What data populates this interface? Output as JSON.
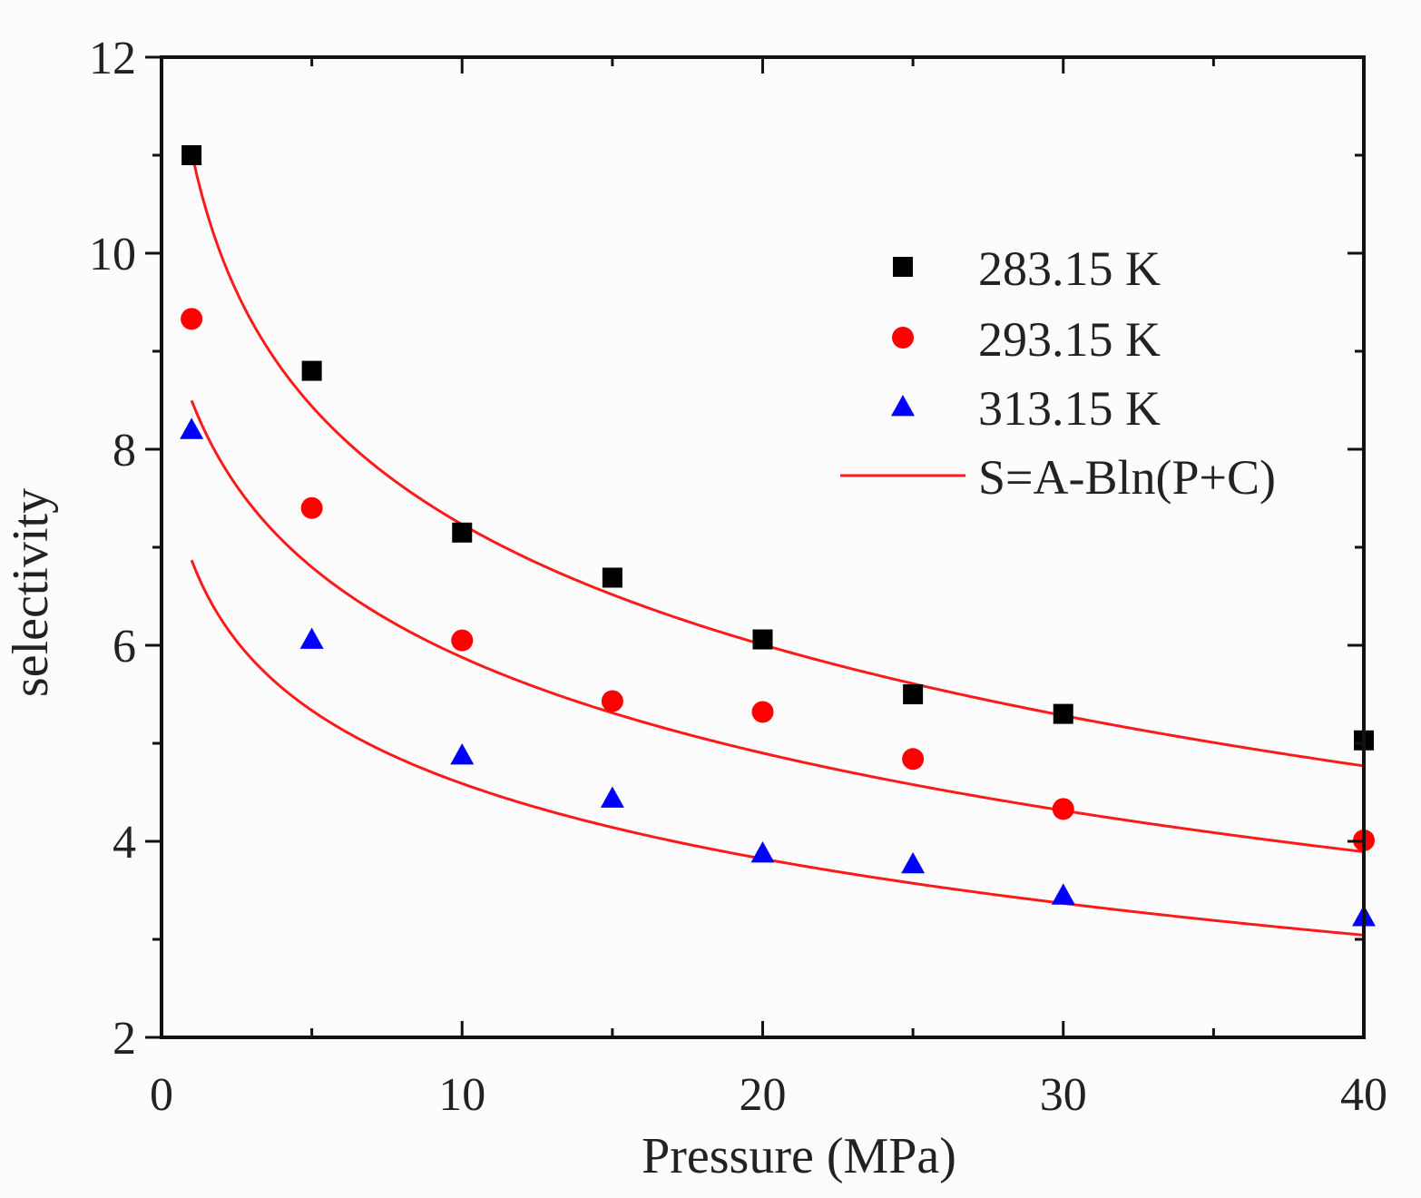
{
  "chart_data": {
    "type": "scatter",
    "title": "",
    "xlabel": "Pressure (MPa)",
    "ylabel": "selectivity",
    "xlim": [
      0,
      40
    ],
    "ylim": [
      2,
      12
    ],
    "xticks": [
      0,
      10,
      20,
      30,
      40
    ],
    "yticks": [
      2,
      4,
      6,
      8,
      10,
      12
    ],
    "x_minor_step": 5,
    "y_minor_step": 1,
    "grid": false,
    "legend_position": "top-right",
    "fit_label": "S=A-Bln(P+C)",
    "fit_color": "#ff1a1a",
    "series": [
      {
        "name": "283.15 K",
        "marker": "square",
        "color": "#000000",
        "x": [
          1,
          5,
          10,
          15,
          20,
          25,
          30,
          40
        ],
        "y": [
          11.0,
          8.8,
          7.15,
          6.69,
          6.06,
          5.5,
          5.3,
          5.03
        ],
        "fit": {
          "A": 11.42,
          "B": 1.8,
          "C": 0.24
        }
      },
      {
        "name": "293.15 K",
        "marker": "circle",
        "color": "#ff0000",
        "x": [
          1,
          5,
          10,
          15,
          20,
          25,
          30,
          40
        ],
        "y": [
          9.33,
          7.4,
          6.05,
          5.43,
          5.32,
          4.84,
          4.33,
          4.01
        ],
        "fit": {
          "A": 9.46,
          "B": 1.5,
          "C": 0.9
        }
      },
      {
        "name": "313.15 K",
        "marker": "triangle",
        "color": "#0000ff",
        "x": [
          1,
          5,
          10,
          15,
          20,
          25,
          30,
          40
        ],
        "y": [
          8.2,
          6.06,
          4.88,
          4.44,
          3.88,
          3.77,
          3.45,
          3.23
        ],
        "fit": {
          "A": 7.26,
          "B": 1.14,
          "C": 0.41
        }
      }
    ]
  }
}
